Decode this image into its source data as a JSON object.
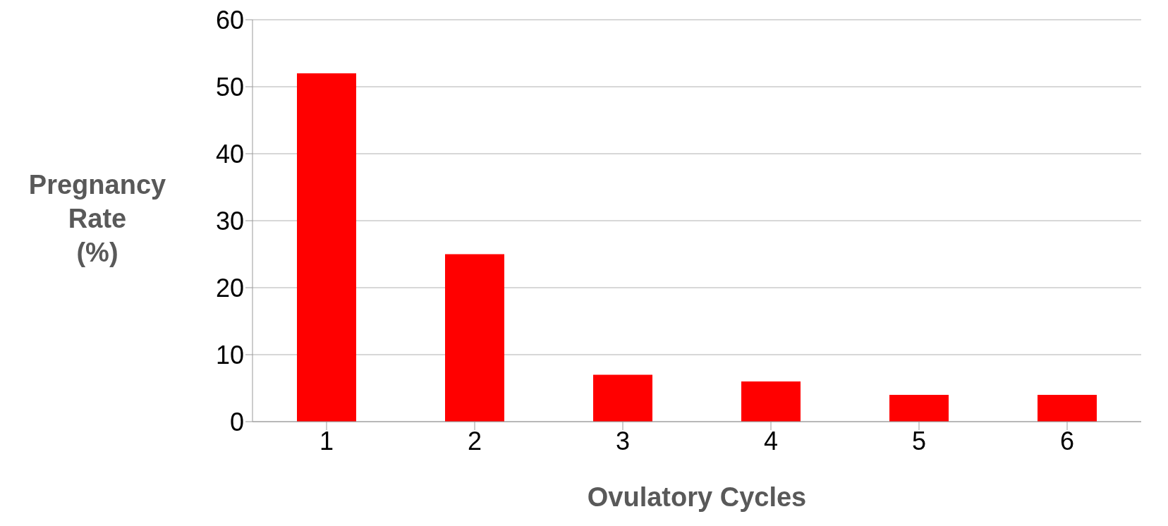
{
  "chart_data": {
    "type": "bar",
    "xlabel": "Ovulatory Cycles",
    "ylabel": "Pregnancy Rate (%)",
    "categories": [
      "1",
      "2",
      "3",
      "4",
      "5",
      "6"
    ],
    "values": [
      52,
      25,
      7,
      6,
      4,
      4
    ],
    "color": "#ff0000",
    "ylim": [
      0,
      60
    ],
    "yticks": [
      0,
      10,
      20,
      30,
      40,
      50,
      60
    ],
    "grid": "y"
  }
}
